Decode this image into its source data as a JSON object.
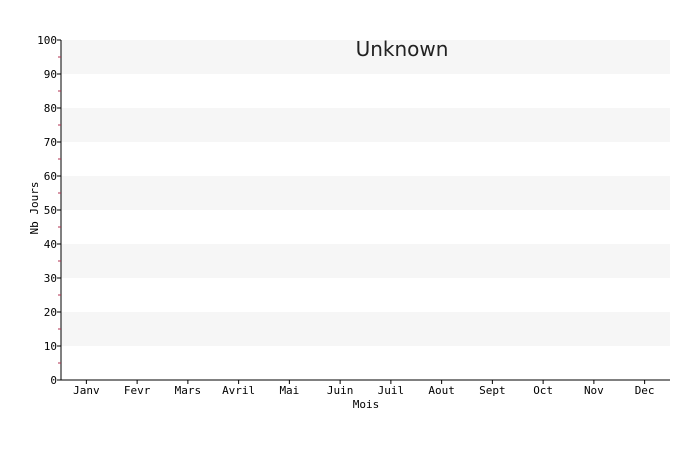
{
  "chart_data": {
    "type": "bar",
    "title": "Unknown",
    "xlabel": "Mois",
    "ylabel": "Nb Jours",
    "categories": [
      "Janv",
      "Fevr",
      "Mars",
      "Avril",
      "Mai",
      "Juin",
      "Juil",
      "Aout",
      "Sept",
      "Oct",
      "Nov",
      "Dec"
    ],
    "series": [],
    "ylim": [
      0,
      100
    ],
    "yticks": [
      0,
      10,
      20,
      30,
      40,
      50,
      60,
      70,
      80,
      90,
      100
    ],
    "grid": "alternating horizontal bands",
    "legend": "none"
  }
}
